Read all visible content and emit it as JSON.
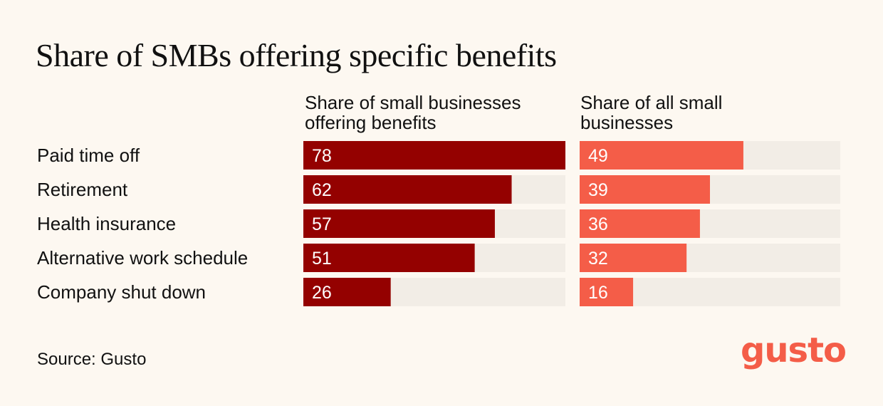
{
  "title": "Share of SMBs offering specific benefits",
  "source": "Source: Gusto",
  "logo": {
    "text": "gusto",
    "color": "#f45d48"
  },
  "colors": {
    "series_a": "#940100",
    "series_b": "#f45d48",
    "track": "#f2ede6",
    "bar_label": "#ffffff"
  },
  "chart_data": {
    "type": "bar",
    "orientation": "horizontal",
    "title": "Share of SMBs offering specific benefits",
    "categories": [
      "Paid time off",
      "Retirement",
      "Health insurance",
      "Alternative work schedule",
      "Company shut down"
    ],
    "series": [
      {
        "name": "Share of small businesses\noffering benefits",
        "values": [
          78,
          62,
          57,
          51,
          26
        ]
      },
      {
        "name": "Share of all small\nbusinesses",
        "values": [
          49,
          39,
          36,
          32,
          16
        ]
      }
    ],
    "xlim": [
      0,
      78
    ],
    "grid": false
  }
}
